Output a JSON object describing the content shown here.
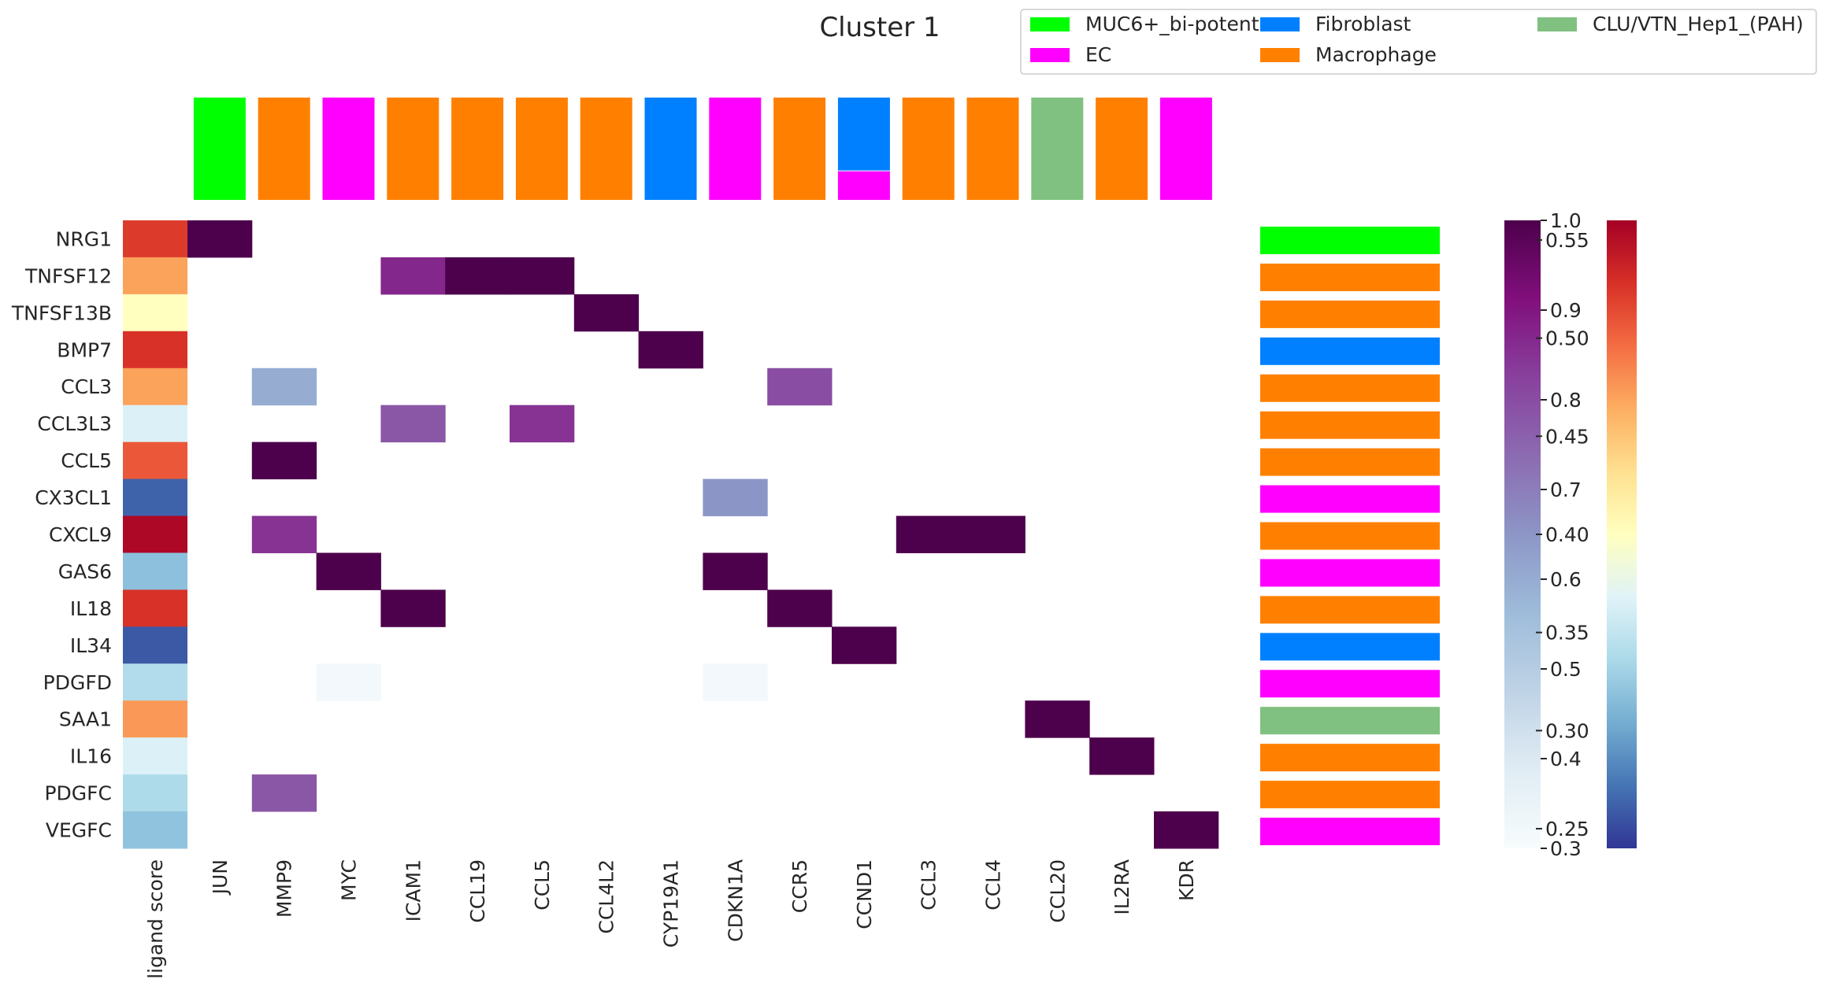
{
  "chart_data": {
    "type": "heatmap",
    "title": "Cluster 1",
    "ligands": [
      "NRG1",
      "TNFSF12",
      "TNFSF13B",
      "BMP7",
      "CCL3",
      "CCL3L3",
      "CCL5",
      "CX3CL1",
      "CXCL9",
      "GAS6",
      "IL18",
      "IL34",
      "PDGFD",
      "SAA1",
      "IL16",
      "PDGFC",
      "VEGFC"
    ],
    "receptors": [
      "JUN",
      "MMP9",
      "MYC",
      "ICAM1",
      "CCL19",
      "CCL5",
      "CCL4L2",
      "CYP19A1",
      "CDKN1A",
      "CCR5",
      "CCND1",
      "CCL3",
      "CCL4",
      "CCL20",
      "IL2RA",
      "KDR"
    ],
    "ligand_score_label": "ligand score",
    "ligand_scores": [
      0.522,
      0.47,
      0.4,
      0.527,
      0.47,
      0.365,
      0.507,
      0.263,
      0.555,
      0.318,
      0.527,
      0.258,
      0.34,
      0.475,
      0.365,
      0.338,
      0.32
    ],
    "interactions": [
      {
        "ligand": "NRG1",
        "receptor": "JUN",
        "value": 1.0
      },
      {
        "ligand": "TNFSF12",
        "receptor": "ICAM1",
        "value": 0.87
      },
      {
        "ligand": "TNFSF12",
        "receptor": "CCL19",
        "value": 1.0
      },
      {
        "ligand": "TNFSF12",
        "receptor": "CCL5",
        "value": 1.0
      },
      {
        "ligand": "TNFSF13B",
        "receptor": "CCL4L2",
        "value": 1.0
      },
      {
        "ligand": "BMP7",
        "receptor": "CYP19A1",
        "value": 1.0
      },
      {
        "ligand": "CCL3",
        "receptor": "MMP9",
        "value": 0.6
      },
      {
        "ligand": "CCL3",
        "receptor": "CCR5",
        "value": 0.8
      },
      {
        "ligand": "CCL3L3",
        "receptor": "ICAM1",
        "value": 0.78
      },
      {
        "ligand": "CCL3L3",
        "receptor": "CCL5",
        "value": 0.85
      },
      {
        "ligand": "CCL5",
        "receptor": "MMP9",
        "value": 1.0
      },
      {
        "ligand": "CX3CL1",
        "receptor": "CDKN1A",
        "value": 0.65
      },
      {
        "ligand": "CXCL9",
        "receptor": "MMP9",
        "value": 0.85
      },
      {
        "ligand": "CXCL9",
        "receptor": "CCL3",
        "value": 1.0
      },
      {
        "ligand": "CXCL9",
        "receptor": "CCL4",
        "value": 1.0
      },
      {
        "ligand": "GAS6",
        "receptor": "MYC",
        "value": 1.0
      },
      {
        "ligand": "GAS6",
        "receptor": "CDKN1A",
        "value": 1.0
      },
      {
        "ligand": "IL18",
        "receptor": "ICAM1",
        "value": 1.0
      },
      {
        "ligand": "IL18",
        "receptor": "CCR5",
        "value": 1.0
      },
      {
        "ligand": "IL34",
        "receptor": "CCND1",
        "value": 1.0
      },
      {
        "ligand": "PDGFD",
        "receptor": "MYC",
        "value": 0.32
      },
      {
        "ligand": "PDGFD",
        "receptor": "CDKN1A",
        "value": 0.32
      },
      {
        "ligand": "SAA1",
        "receptor": "CCL20",
        "value": 1.0
      },
      {
        "ligand": "IL16",
        "receptor": "IL2RA",
        "value": 1.0
      },
      {
        "ligand": "PDGFC",
        "receptor": "MMP9",
        "value": 0.78
      },
      {
        "ligand": "VEGFC",
        "receptor": "KDR",
        "value": 1.0
      }
    ],
    "ligand_cell_types": [
      "MUC6+_bi-potent",
      "Macrophage",
      "Macrophage",
      "Fibroblast",
      "Macrophage",
      "Macrophage",
      "Macrophage",
      "EC",
      "Macrophage",
      "EC",
      "Macrophage",
      "Fibroblast",
      "EC",
      "CLU/VTN_Hep1_(PAH)",
      "Macrophage",
      "Macrophage",
      "EC"
    ],
    "receptor_cell_types": [
      [
        {
          "type": "MUC6+_bi-potent",
          "fraction": 1.0
        }
      ],
      [
        {
          "type": "Macrophage",
          "fraction": 1.0
        }
      ],
      [
        {
          "type": "EC",
          "fraction": 1.0
        }
      ],
      [
        {
          "type": "Macrophage",
          "fraction": 1.0
        }
      ],
      [
        {
          "type": "Macrophage",
          "fraction": 1.0
        }
      ],
      [
        {
          "type": "Macrophage",
          "fraction": 1.0
        }
      ],
      [
        {
          "type": "Macrophage",
          "fraction": 1.0
        }
      ],
      [
        {
          "type": "Fibroblast",
          "fraction": 1.0
        }
      ],
      [
        {
          "type": "EC",
          "fraction": 1.0
        }
      ],
      [
        {
          "type": "Macrophage",
          "fraction": 1.0
        }
      ],
      [
        {
          "type": "Fibroblast",
          "fraction": 0.72
        },
        {
          "type": "EC",
          "fraction": 0.28
        }
      ],
      [
        {
          "type": "Macrophage",
          "fraction": 1.0
        }
      ],
      [
        {
          "type": "Macrophage",
          "fraction": 1.0
        }
      ],
      [
        {
          "type": "CLU/VTN_Hep1_(PAH)",
          "fraction": 1.0
        }
      ],
      [
        {
          "type": "Macrophage",
          "fraction": 1.0
        }
      ],
      [
        {
          "type": "EC",
          "fraction": 1.0
        }
      ]
    ],
    "legend": [
      {
        "name": "MUC6+_bi-potent",
        "color": "#00ff00"
      },
      {
        "name": "EC",
        "color": "#ff00ff"
      },
      {
        "name": "Fibroblast",
        "color": "#0080ff"
      },
      {
        "name": "Macrophage",
        "color": "#ff8000"
      },
      {
        "name": "CLU/VTN_Hep1_(PAH)",
        "color": "#80c080"
      }
    ],
    "legend_placement": "top-right",
    "interaction_colorbar": {
      "range": [
        0.3,
        1.0
      ],
      "ticks": [
        "0.3",
        "0.4",
        "0.5",
        "0.6",
        "0.7",
        "0.8",
        "0.9",
        "1.0"
      ],
      "colormap": "BuPu"
    },
    "ligand_score_colorbar": {
      "range": [
        0.24,
        0.56
      ],
      "ticks": [
        "0.25",
        "0.30",
        "0.35",
        "0.40",
        "0.45",
        "0.50",
        "0.55"
      ],
      "colormap": "RdYlBu_r"
    },
    "grid": false
  }
}
